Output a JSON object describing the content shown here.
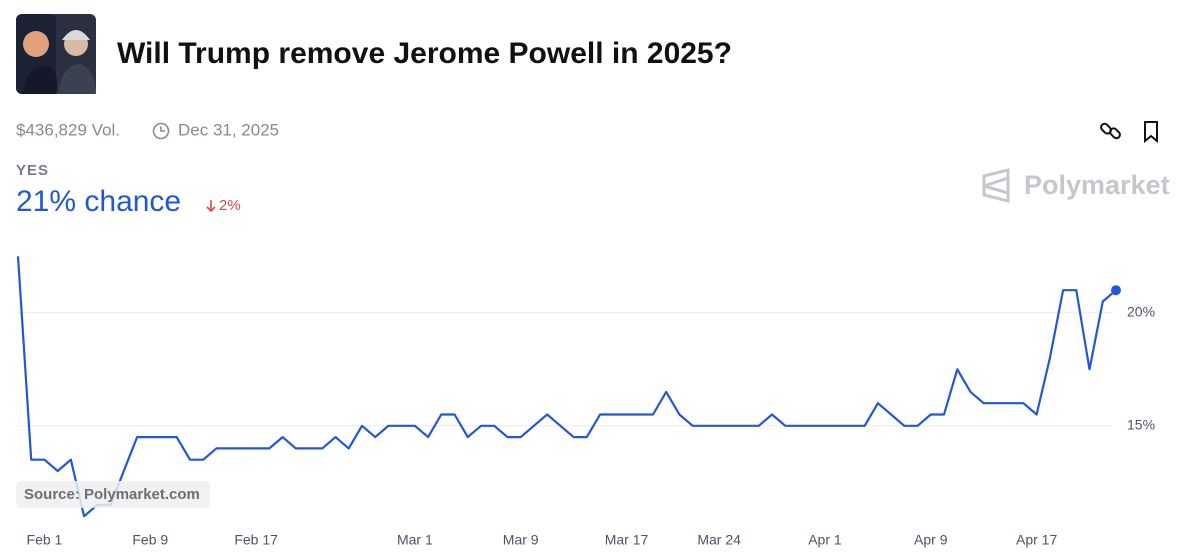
{
  "header": {
    "title": "Will Trump remove Jerome Powell in 2025?",
    "volume": "$436,829 Vol.",
    "end_date": "Dec 31, 2025",
    "outcome": "YES",
    "chance": "21% chance",
    "change": "2%",
    "brand": "Polymarket",
    "source": "Source: Polymarket.com"
  },
  "chart_data": {
    "type": "line",
    "color": "#2257d6",
    "grid": true,
    "x": [
      "Jan 30",
      "Jan 31",
      "Feb 1",
      "Feb 2",
      "Feb 3",
      "Feb 4",
      "Feb 5",
      "Feb 6",
      "Feb 7",
      "Feb 8",
      "Feb 9",
      "Feb 10",
      "Feb 11",
      "Feb 12",
      "Feb 13",
      "Feb 14",
      "Feb 15",
      "Feb 16",
      "Feb 17",
      "Feb 18",
      "Feb 19",
      "Feb 20",
      "Feb 21",
      "Feb 22",
      "Feb 23",
      "Feb 24",
      "Feb 25",
      "Feb 26",
      "Feb 27",
      "Feb 28",
      "Mar 1",
      "Mar 2",
      "Mar 3",
      "Mar 4",
      "Mar 5",
      "Mar 6",
      "Mar 7",
      "Mar 8",
      "Mar 9",
      "Mar 10",
      "Mar 11",
      "Mar 12",
      "Mar 13",
      "Mar 14",
      "Mar 15",
      "Mar 16",
      "Mar 17",
      "Mar 18",
      "Mar 19",
      "Mar 20",
      "Mar 21",
      "Mar 22",
      "Mar 23",
      "Mar 24",
      "Mar 25",
      "Mar 26",
      "Mar 27",
      "Mar 28",
      "Mar 29",
      "Mar 30",
      "Mar 31",
      "Apr 1",
      "Apr 2",
      "Apr 3",
      "Apr 4",
      "Apr 5",
      "Apr 6",
      "Apr 7",
      "Apr 8",
      "Apr 9",
      "Apr 10",
      "Apr 11",
      "Apr 12",
      "Apr 13",
      "Apr 14",
      "Apr 15",
      "Apr 16",
      "Apr 17",
      "Apr 18",
      "Apr 19",
      "Apr 20",
      "Apr 21",
      "Apr 22",
      "Apr 23"
    ],
    "values": [
      22.5,
      13.5,
      13.5,
      13.0,
      13.5,
      11.0,
      11.5,
      11.5,
      13.0,
      14.5,
      14.5,
      14.5,
      14.5,
      13.5,
      13.5,
      14.0,
      14.0,
      14.0,
      14.0,
      14.0,
      14.5,
      14.0,
      14.0,
      14.0,
      14.5,
      14.0,
      15.0,
      14.5,
      15.0,
      15.0,
      15.0,
      14.5,
      15.5,
      15.5,
      14.5,
      15.0,
      15.0,
      14.5,
      14.5,
      15.0,
      15.5,
      15.0,
      14.5,
      14.5,
      15.5,
      15.5,
      15.5,
      15.5,
      15.5,
      16.5,
      15.5,
      15.0,
      15.0,
      15.0,
      15.0,
      15.0,
      15.0,
      15.5,
      15.0,
      15.0,
      15.0,
      15.0,
      15.0,
      15.0,
      15.0,
      16.0,
      15.5,
      15.0,
      15.0,
      15.5,
      15.5,
      17.5,
      16.5,
      16.0,
      16.0,
      16.0,
      16.0,
      15.5,
      18.0,
      21.0,
      21.0,
      17.5,
      20.5,
      21.0
    ],
    "xticks": [
      "Feb 1",
      "Feb 9",
      "Feb 17",
      "Mar 1",
      "Mar 9",
      "Mar 17",
      "Mar 24",
      "Apr 1",
      "Apr 9",
      "Apr 17"
    ],
    "ylim": [
      10.5,
      23
    ],
    "yticks": [
      {
        "value": 15,
        "label": "15%"
      },
      {
        "value": 20,
        "label": "20%"
      }
    ]
  }
}
